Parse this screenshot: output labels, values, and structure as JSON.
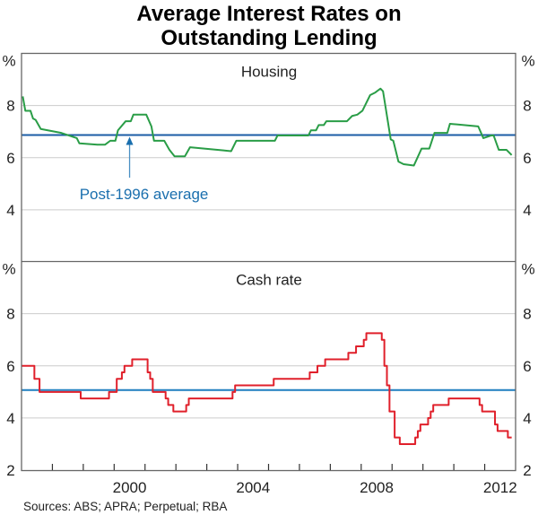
{
  "chart_data": {
    "type": "line",
    "title": [
      "Average Interest Rates on",
      "Outstanding Lending"
    ],
    "source": "Sources: ABS; APRA; Perpetual; RBA",
    "xlim": [
      "1997-01",
      "2013-01"
    ],
    "x_tick_labels": [
      "2000",
      "2004",
      "2008",
      "2012"
    ],
    "grid": true,
    "colors": {
      "housing": "#2a9d47",
      "cash": "#e0202b",
      "average_top": "#1b5ca6",
      "average_bottom": "#1f7fc0",
      "grid": "#cccccc",
      "frame": "#666666"
    },
    "panels": [
      {
        "title": "Housing",
        "unit": "%",
        "ylim": [
          2,
          10
        ],
        "y_tick_labels": [
          "4",
          "6",
          "8"
        ],
        "average": 6.87,
        "annotation": {
          "text": "Post-1996 average",
          "points_to": "average line",
          "x": "2000-07"
        },
        "series": [
          {
            "style": "line",
            "points": [
              [
                "1997-01",
                8.35
              ],
              [
                "1997-02",
                7.8
              ],
              [
                "1997-04",
                7.8
              ],
              [
                "1997-05",
                7.5
              ],
              [
                "1997-06",
                7.45
              ],
              [
                "1997-08",
                7.1
              ],
              [
                "1998-04",
                6.95
              ],
              [
                "1998-10",
                6.75
              ],
              [
                "1998-11",
                6.55
              ],
              [
                "1999-06",
                6.5
              ],
              [
                "1999-09",
                6.5
              ],
              [
                "1999-11",
                6.65
              ],
              [
                "2000-01",
                6.65
              ],
              [
                "2000-02",
                7.05
              ],
              [
                "2000-05",
                7.4
              ],
              [
                "2000-07",
                7.4
              ],
              [
                "2000-08",
                7.65
              ],
              [
                "2001-01",
                7.65
              ],
              [
                "2001-03",
                7.2
              ],
              [
                "2001-04",
                6.65
              ],
              [
                "2001-08",
                6.65
              ],
              [
                "2001-10",
                6.3
              ],
              [
                "2001-12",
                6.05
              ],
              [
                "2002-04",
                6.05
              ],
              [
                "2002-06",
                6.4
              ],
              [
                "2003-07",
                6.28
              ],
              [
                "2003-10",
                6.25
              ],
              [
                "2003-12",
                6.65
              ],
              [
                "2005-03",
                6.65
              ],
              [
                "2005-04",
                6.85
              ],
              [
                "2006-04",
                6.85
              ],
              [
                "2006-05",
                7.05
              ],
              [
                "2006-07",
                7.05
              ],
              [
                "2006-08",
                7.25
              ],
              [
                "2006-10",
                7.25
              ],
              [
                "2006-11",
                7.4
              ],
              [
                "2007-07",
                7.4
              ],
              [
                "2007-09",
                7.6
              ],
              [
                "2007-11",
                7.65
              ],
              [
                "2008-01",
                7.8
              ],
              [
                "2008-04",
                8.4
              ],
              [
                "2008-06",
                8.5
              ],
              [
                "2008-08",
                8.65
              ],
              [
                "2008-09",
                8.55
              ],
              [
                "2008-12",
                6.7
              ],
              [
                "2009-01",
                6.65
              ],
              [
                "2009-03",
                5.85
              ],
              [
                "2009-05",
                5.75
              ],
              [
                "2009-09",
                5.7
              ],
              [
                "2009-12",
                6.35
              ],
              [
                "2010-03",
                6.35
              ],
              [
                "2010-05",
                6.95
              ],
              [
                "2010-10",
                6.95
              ],
              [
                "2010-11",
                7.3
              ],
              [
                "2011-10",
                7.2
              ],
              [
                "2011-12",
                6.75
              ],
              [
                "2012-03",
                6.85
              ],
              [
                "2012-04",
                6.85
              ],
              [
                "2012-06",
                6.3
              ],
              [
                "2012-09",
                6.3
              ],
              [
                "2012-11",
                6.1
              ]
            ]
          }
        ]
      },
      {
        "title": "Cash rate",
        "unit": "%",
        "ylim": [
          2,
          10
        ],
        "y_tick_labels": [
          "2",
          "4",
          "6",
          "8"
        ],
        "average": 5.07,
        "series": [
          {
            "style": "step",
            "end": "2012-11",
            "points": [
              [
                "1997-01",
                6.0
              ],
              [
                "1997-06",
                5.5
              ],
              [
                "1997-08",
                5.0
              ],
              [
                "1998-12",
                4.75
              ],
              [
                "1999-11",
                5.0
              ],
              [
                "2000-02",
                5.5
              ],
              [
                "2000-04",
                5.75
              ],
              [
                "2000-05",
                6.0
              ],
              [
                "2000-08",
                6.25
              ],
              [
                "2001-02",
                5.75
              ],
              [
                "2001-03",
                5.5
              ],
              [
                "2001-04",
                5.0
              ],
              [
                "2001-09",
                4.75
              ],
              [
                "2001-10",
                4.5
              ],
              [
                "2001-12",
                4.25
              ],
              [
                "2002-05",
                4.5
              ],
              [
                "2002-06",
                4.75
              ],
              [
                "2003-11",
                5.0
              ],
              [
                "2003-12",
                5.25
              ],
              [
                "2005-03",
                5.5
              ],
              [
                "2006-05",
                5.75
              ],
              [
                "2006-08",
                6.0
              ],
              [
                "2006-11",
                6.25
              ],
              [
                "2007-08",
                6.5
              ],
              [
                "2007-11",
                6.75
              ],
              [
                "2008-02",
                7.0
              ],
              [
                "2008-03",
                7.25
              ],
              [
                "2008-09",
                7.0
              ],
              [
                "2008-10",
                6.0
              ],
              [
                "2008-11",
                5.25
              ],
              [
                "2008-12",
                4.25
              ],
              [
                "2009-02",
                3.25
              ],
              [
                "2009-04",
                3.0
              ],
              [
                "2009-10",
                3.25
              ],
              [
                "2009-11",
                3.5
              ],
              [
                "2009-12",
                3.75
              ],
              [
                "2010-03",
                4.0
              ],
              [
                "2010-04",
                4.25
              ],
              [
                "2010-05",
                4.5
              ],
              [
                "2010-11",
                4.75
              ],
              [
                "2011-11",
                4.5
              ],
              [
                "2011-12",
                4.25
              ],
              [
                "2012-05",
                3.75
              ],
              [
                "2012-06",
                3.5
              ],
              [
                "2012-10",
                3.25
              ]
            ]
          }
        ]
      }
    ]
  }
}
